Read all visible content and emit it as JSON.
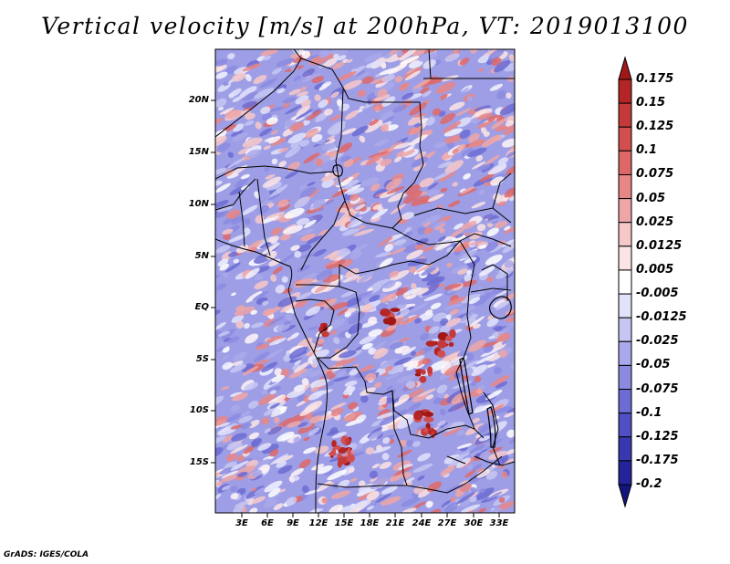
{
  "title": "Vertical velocity [m/s] at 200hPa, VT: 2019013100",
  "credit": "GrADS: IGES/COLA",
  "map": {
    "lat_labels": [
      "20N",
      "15N",
      "10N",
      "5N",
      "EQ",
      "5S",
      "10S",
      "15S"
    ],
    "lon_labels": [
      "3E",
      "6E",
      "9E",
      "12E",
      "15E",
      "18E",
      "21E",
      "24E",
      "27E",
      "30E",
      "33E"
    ]
  },
  "colorbar": {
    "levels": [
      "0.175",
      "0.15",
      "0.125",
      "0.1",
      "0.075",
      "0.05",
      "0.025",
      "0.0125",
      "0.005",
      "-0.005",
      "-0.0125",
      "-0.025",
      "-0.05",
      "-0.075",
      "-0.1",
      "-0.125",
      "-0.175",
      "-0.2"
    ],
    "colors": [
      "#a01818",
      "#b42626",
      "#c43a3a",
      "#d24f4f",
      "#de6868",
      "#e78686",
      "#efa6a6",
      "#f6c8c8",
      "#fbe4e4",
      "#ffffff",
      "#e2e2fa",
      "#c6c6f2",
      "#a8a8ea",
      "#8a8ae0",
      "#6c6cd4",
      "#5050c4",
      "#3838b0",
      "#24249a",
      "#14147e"
    ]
  }
}
